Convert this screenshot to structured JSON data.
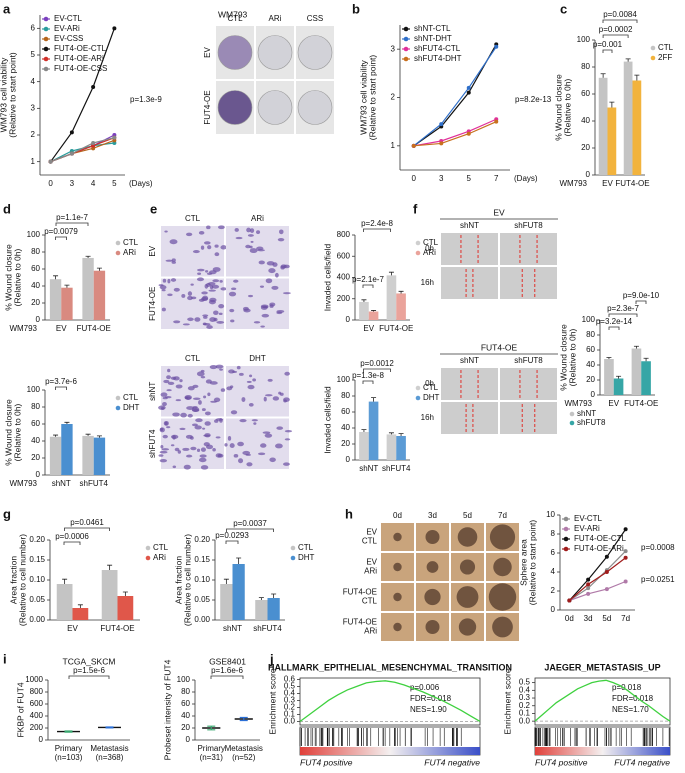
{
  "chart_data": [
    {
      "panel": "a",
      "type": "line",
      "categories": [
        "0",
        "3",
        "4",
        "5"
      ],
      "xlabel": "(Days)",
      "ylabel": [
        "WM793 cell viability",
        "(Relative to start point)"
      ],
      "ylim": [
        0.5,
        6.5
      ],
      "yticks": [
        1,
        2,
        3,
        4,
        5,
        6
      ],
      "legend": "top-left",
      "series": [
        {
          "name": "EV-CTL",
          "color": "#7b3fbf",
          "values": [
            1,
            1.3,
            1.6,
            2.0
          ]
        },
        {
          "name": "EV-ARi",
          "color": "#2a9d9d",
          "values": [
            1,
            1.4,
            1.6,
            1.7
          ]
        },
        {
          "name": "EV-CSS",
          "color": "#b5651d",
          "values": [
            1,
            1.3,
            1.5,
            1.8
          ]
        },
        {
          "name": "FUT4-OE-CTL",
          "color": "#111111",
          "values": [
            1,
            2.1,
            3.8,
            6.0
          ]
        },
        {
          "name": "FUT4-OE-ARi",
          "color": "#d0302a",
          "values": [
            1,
            1.3,
            1.6,
            1.9
          ]
        },
        {
          "name": "FUT4-OE-CSS",
          "color": "#888888",
          "values": [
            1,
            1.3,
            1.7,
            1.9
          ]
        }
      ],
      "annotations": [
        "p=1.3e-9"
      ]
    },
    {
      "panel": "b",
      "type": "line",
      "categories": [
        "0",
        "3",
        "5",
        "7"
      ],
      "xlabel": "(Days)",
      "ylabel": [
        "WM793 cell viability",
        "(Relative to start point)"
      ],
      "ylim": [
        0.5,
        3.5
      ],
      "yticks": [
        1,
        2,
        3
      ],
      "legend": "top-left",
      "series": [
        {
          "name": "shNT-CTL",
          "color": "#111111",
          "values": [
            1,
            1.4,
            2.1,
            3.1
          ]
        },
        {
          "name": "shNT-DHT",
          "color": "#2f6fc9",
          "values": [
            1,
            1.45,
            2.2,
            3.05
          ]
        },
        {
          "name": "shFUT4-CTL",
          "color": "#e0309a",
          "values": [
            1,
            1.1,
            1.3,
            1.55
          ]
        },
        {
          "name": "shFUT4-DHT",
          "color": "#c8701e",
          "values": [
            1,
            1.05,
            1.25,
            1.5
          ]
        }
      ],
      "annotations": [
        "p=8.2e-13"
      ]
    },
    {
      "panel": "c",
      "type": "bar",
      "categories": [
        "EV",
        "FUT4-OE"
      ],
      "xlabel": "WM793",
      "ylabel": [
        "% Wound closure",
        "(Relative to 0h)"
      ],
      "ylim": [
        0,
        100
      ],
      "yticks": [
        0,
        20,
        40,
        60,
        80,
        100
      ],
      "legend": "right",
      "series": [
        {
          "name": "CTL",
          "color": "#c4c4c4",
          "values": [
            72,
            84
          ],
          "errors": [
            3,
            2
          ]
        },
        {
          "name": "2FF",
          "color": "#f2b33d",
          "values": [
            50,
            70
          ],
          "errors": [
            4,
            4
          ]
        }
      ],
      "annotations": [
        "p=0.001",
        "p=0.0002",
        "p=0.0084"
      ]
    },
    {
      "panel": "d",
      "type": "bar",
      "categories": [
        "EV",
        "FUT4-OE"
      ],
      "xlabel": "WM793",
      "ylabel": [
        "% Wound closure",
        "(Relative to 0h)"
      ],
      "ylim": [
        0,
        100
      ],
      "yticks": [
        0,
        20,
        40,
        60,
        80,
        100
      ],
      "legend": "right",
      "series": [
        {
          "name": "CTL",
          "color": "#c4c4c4",
          "values": [
            48,
            73
          ],
          "errors": [
            4,
            2
          ]
        },
        {
          "name": "ARi",
          "color": "#d98a80",
          "values": [
            38,
            58
          ],
          "errors": [
            3,
            3
          ]
        }
      ],
      "annotations": [
        "p=1.1e-7",
        "p=0.0079"
      ]
    },
    {
      "type": "bar",
      "categories": [
        "shNT",
        "shFUT4"
      ],
      "xlabel": "WM793",
      "ylabel": [
        "% Wound closure",
        "(Relative to 0h)"
      ],
      "ylim": [
        0,
        100
      ],
      "yticks": [
        0,
        20,
        40,
        60,
        80,
        100
      ],
      "legend": "right",
      "series": [
        {
          "name": "CTL",
          "color": "#c4c4c4",
          "values": [
            45,
            46
          ],
          "errors": [
            2,
            2
          ]
        },
        {
          "name": "DHT",
          "color": "#4a8fd0",
          "values": [
            60,
            44
          ],
          "errors": [
            2,
            2
          ]
        }
      ],
      "annotations": [
        "p=3.7e-6"
      ]
    },
    {
      "panel": "e",
      "type": "bar",
      "categories": [
        "EV",
        "FUT4-OE"
      ],
      "ylabel": [
        "Invaded cells/field"
      ],
      "ylim": [
        0,
        800
      ],
      "yticks": [
        0,
        200,
        400,
        600,
        800
      ],
      "legend": "right",
      "series": [
        {
          "name": "CTL",
          "color": "#cfcfcf",
          "values": [
            170,
            420
          ],
          "errors": [
            20,
            30
          ]
        },
        {
          "name": "ARi",
          "color": "#eaa39b",
          "values": [
            80,
            250
          ],
          "errors": [
            10,
            20
          ]
        }
      ],
      "annotations": [
        "p=2.4e-8",
        "p=2.1e-7"
      ]
    },
    {
      "type": "bar",
      "categories": [
        "shNT",
        "shFUT4"
      ],
      "ylabel": [
        "Invaded cells/field"
      ],
      "ylim": [
        0,
        100
      ],
      "yticks": [
        0,
        20,
        40,
        60,
        80,
        100
      ],
      "legend": "right",
      "series": [
        {
          "name": "CTL",
          "color": "#cfcfcf",
          "values": [
            35,
            32
          ],
          "errors": [
            3,
            2
          ]
        },
        {
          "name": "DHT",
          "color": "#5b9bd5",
          "values": [
            73,
            30
          ],
          "errors": [
            5,
            3
          ]
        }
      ],
      "annotations": [
        "p=0.0012",
        "p=1.3e-8"
      ]
    },
    {
      "panel": "f",
      "type": "bar",
      "categories": [
        "EV",
        "FUT4-OE"
      ],
      "xlabel": "WM793",
      "ylabel": [
        "% Wound closure",
        "(Relative to 0h)"
      ],
      "ylim": [
        0,
        100
      ],
      "yticks": [
        0,
        20,
        40,
        60,
        80,
        100
      ],
      "legend": "bottom",
      "series": [
        {
          "name": "shNT",
          "color": "#c4c4c4",
          "values": [
            48,
            62
          ],
          "errors": [
            2,
            3
          ]
        },
        {
          "name": "shFUT8",
          "color": "#36a6a6",
          "values": [
            22,
            45
          ],
          "errors": [
            3,
            4
          ]
        }
      ],
      "annotations": [
        "p=9.0e-10",
        "p=2.3e-7",
        "p=3.2e-14"
      ]
    },
    {
      "panel": "g",
      "type": "bar",
      "categories": [
        "EV",
        "FUT4-OE"
      ],
      "ylabel": [
        "Area fraction",
        "(Relative to cell number)"
      ],
      "ylim": [
        0,
        0.2
      ],
      "yticks": [
        {
          "value": 0,
          "label": "0.00"
        },
        0.05,
        {
          "value": 0.1,
          "label": "0.10"
        },
        0.15,
        {
          "value": 0.2,
          "label": "0.20"
        }
      ],
      "legend": "right",
      "series": [
        {
          "name": "CTL",
          "color": "#c4c4c4",
          "values": [
            0.09,
            0.125
          ],
          "errors": [
            0.012,
            0.012
          ]
        },
        {
          "name": "ARi",
          "color": "#e0574a",
          "values": [
            0.03,
            0.06
          ],
          "errors": [
            0.008,
            0.01
          ]
        }
      ],
      "annotations": [
        "p=0.0461",
        "p=0.0006"
      ]
    },
    {
      "type": "bar",
      "categories": [
        "shNT",
        "shFUT4"
      ],
      "ylabel": [
        "Area fraction",
        "(Relative to cell number)"
      ],
      "ylim": [
        0,
        0.2
      ],
      "yticks": [
        {
          "value": 0,
          "label": "0.00"
        },
        0.05,
        {
          "value": 0.1,
          "label": "0.10"
        },
        0.15,
        {
          "value": 0.2,
          "label": "0.20"
        }
      ],
      "legend": "right",
      "series": [
        {
          "name": "CTL",
          "color": "#c4c4c4",
          "values": [
            0.09,
            0.05
          ],
          "errors": [
            0.012,
            0.006
          ]
        },
        {
          "name": "DHT",
          "color": "#4a8fd0",
          "values": [
            0.14,
            0.055
          ],
          "errors": [
            0.015,
            0.01
          ]
        }
      ],
      "annotations": [
        "p=0.0037",
        "p=0.0293"
      ]
    },
    {
      "panel": "h",
      "type": "line",
      "categories": [
        "0d",
        "3d",
        "5d",
        "7d"
      ],
      "ylabel": [
        "Sphere area",
        "(Relative to start point)"
      ],
      "ylim": [
        0,
        10
      ],
      "yticks": [
        0,
        2,
        4,
        6,
        8,
        10
      ],
      "legend": "top-left",
      "series": [
        {
          "name": "EV-CTL",
          "color": "#8c8c8c",
          "values": [
            1,
            2.3,
            4.2,
            6.2
          ]
        },
        {
          "name": "EV-ARi",
          "color": "#b07aa8",
          "values": [
            1,
            1.7,
            2.2,
            3.0
          ]
        },
        {
          "name": "FUT4-OE-CTL",
          "color": "#111111",
          "values": [
            1,
            3.2,
            5.6,
            8.5
          ]
        },
        {
          "name": "FUT4-OE-ARi",
          "color": "#a01c1c",
          "values": [
            1,
            2.7,
            4.0,
            5.5
          ]
        }
      ],
      "annotations": [
        "p=0.0008",
        "p=0.0251"
      ]
    },
    {
      "panel": "i",
      "type": "dot",
      "title": "TCGA_SKCM",
      "categories": [
        "Primary",
        "Metastasis"
      ],
      "n_labels": [
        "(n=103)",
        "(n=368)"
      ],
      "ylabel": [
        "FKBP of FUT4"
      ],
      "ylim": [
        0,
        1000
      ],
      "yticks": [
        0,
        200,
        400,
        600,
        800,
        1000
      ],
      "values": [
        140,
        210
      ],
      "errors": [
        10,
        8
      ],
      "colors": [
        "#3aa870",
        "#2b6fd6"
      ],
      "annotations": [
        "p=1.5e-6"
      ]
    },
    {
      "type": "dot",
      "title": "GSE8401",
      "categories": [
        "Primary",
        "Metastasis"
      ],
      "n_labels": [
        "(n=31)",
        "(n=52)"
      ],
      "ylabel": [
        "Probeset intensity of FUT4"
      ],
      "ylim": [
        0,
        100
      ],
      "yticks": [
        0,
        20,
        40,
        60,
        80,
        100
      ],
      "values": [
        20,
        35
      ],
      "errors": [
        3,
        2.5
      ],
      "colors": [
        "#3aa870",
        "#2b6fd6"
      ],
      "annotations": [
        "p=1.6e-6"
      ]
    },
    {
      "panel": "j",
      "type": "gsea",
      "title": "HALLMARK_EPITHELIAL_MESENCHYMAL_TRANSITION",
      "ylabel": [
        "Enrichment score"
      ],
      "ylim": [
        -0.05,
        0.62
      ],
      "yticks": [
        {
          "value": 0,
          "label": "0.0"
        },
        0.1,
        0.2,
        0.3,
        0.4,
        0.5,
        0.6
      ],
      "color": "#3fd13f",
      "values": [
        0,
        0.1,
        0.2,
        0.3,
        0.38,
        0.45,
        0.5,
        0.55,
        0.57,
        0.58,
        0.56,
        0.52,
        0.47,
        0.42,
        0.36,
        0.3,
        0.23,
        0.16,
        0.08,
        0
      ],
      "annotations": [
        "p=0.006",
        "FDR=0.018",
        "NES=1.90"
      ],
      "xlabels": [
        "FUT4 positive",
        "FUT4 negative"
      ]
    },
    {
      "type": "gsea",
      "title": "JAEGER_METASTASIS_UP",
      "ylabel": [
        "Enrichment score"
      ],
      "ylim": [
        -0.05,
        0.56
      ],
      "yticks": [
        {
          "value": 0,
          "label": "0.0"
        },
        0.1,
        0.2,
        0.3,
        0.4,
        0.5
      ],
      "color": "#3fd13f",
      "values": [
        0,
        0.08,
        0.16,
        0.24,
        0.3,
        0.36,
        0.42,
        0.46,
        0.5,
        0.52,
        0.53,
        0.5,
        0.46,
        0.4,
        0.33,
        0.26,
        0.2,
        0.13,
        0.06,
        0
      ],
      "annotations": [
        "p=0.018",
        "FDR=0.018",
        "NES=1.70"
      ],
      "xlabels": [
        "FUT4 positive",
        "FUT4 negative"
      ]
    }
  ],
  "image_panels": [
    {
      "title": "WM793",
      "columns": [
        "CTL",
        "ARi",
        "CSS"
      ],
      "rows": [
        "EV",
        "FUT4-OE"
      ]
    },
    {
      "columns": [
        "CTL",
        "ARi"
      ],
      "rows": [
        "EV",
        "FUT4-OE"
      ]
    },
    {
      "columns": [
        "CTL",
        "DHT"
      ],
      "rows": [
        "shNT",
        "shFUT4"
      ]
    },
    {
      "title": "EV",
      "columns": [
        "shNT",
        "shFUT8"
      ],
      "rows": [
        "0h",
        "16h"
      ]
    },
    {
      "title": "FUT4-OE",
      "columns": [
        "shNT",
        "shFUT8"
      ],
      "rows": [
        "0h",
        "16h"
      ]
    },
    {
      "columns": [
        "0d",
        "3d",
        "5d",
        "7d"
      ],
      "rows": [
        [
          "EV",
          "CTL"
        ],
        [
          "EV",
          "ARi"
        ],
        [
          "FUT4-OE",
          "CTL"
        ],
        [
          "FUT4-OE",
          "ARi"
        ]
      ]
    }
  ]
}
